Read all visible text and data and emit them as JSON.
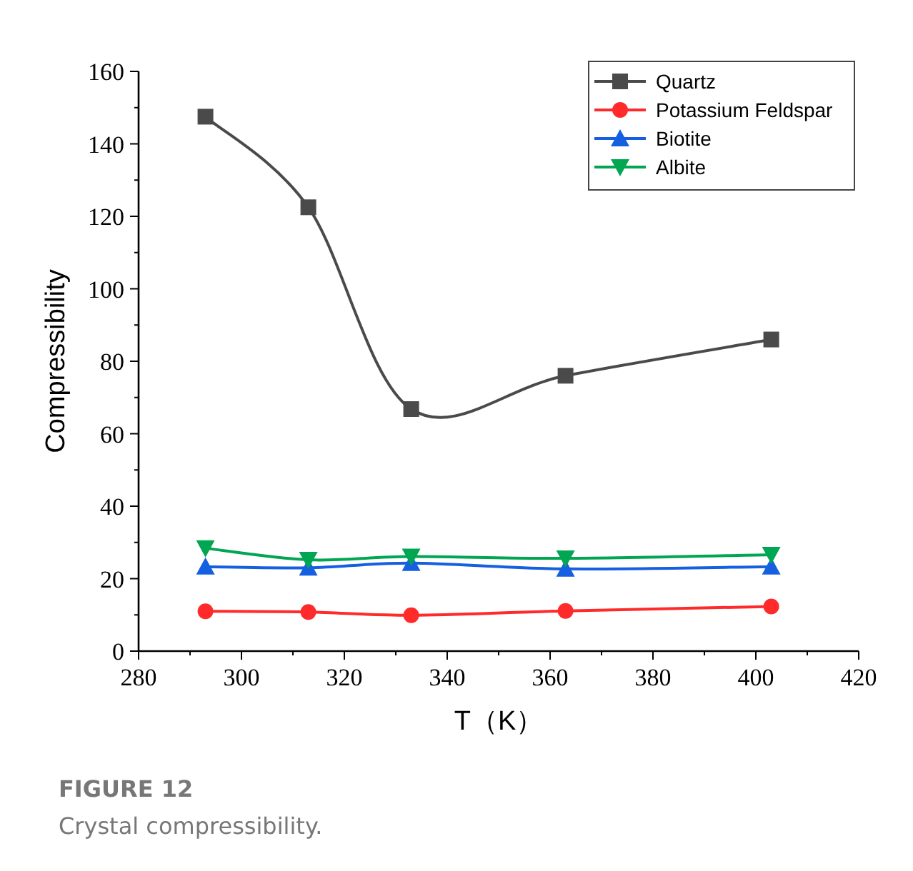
{
  "chart_data": {
    "type": "line",
    "xlabel": "T（K）",
    "ylabel": "Compressibility",
    "annotations": [
      "**FIGURE 12**",
      "Crystal compressibility."
    ],
    "x": [
      293,
      313,
      333,
      363,
      403
    ],
    "series": [
      {
        "name": "Quartz",
        "color": "#4a4a4a",
        "marker": "square",
        "values": [
          147.5,
          122.5,
          66.8,
          76,
          86
        ]
      },
      {
        "name": "Potassium Feldspar",
        "color": "#ff2a2a",
        "marker": "circle",
        "values": [
          11,
          10.8,
          9.9,
          11.1,
          12.3
        ]
      },
      {
        "name": "Biotite",
        "color": "#1560e0",
        "marker": "triangle",
        "values": [
          23.3,
          23,
          24.3,
          22.7,
          23.3
        ]
      },
      {
        "name": "Albite",
        "color": "#00a651",
        "marker": "triangle-down",
        "values": [
          28.4,
          25.2,
          26.1,
          25.6,
          26.6
        ]
      }
    ],
    "xlim": [
      280,
      420
    ],
    "xticks": [
      280,
      {
        "value": 290,
        "label": null
      },
      300,
      {
        "value": 310,
        "label": null
      },
      320,
      {
        "value": 330,
        "label": null
      },
      340,
      {
        "value": 350,
        "label": null
      },
      360,
      {
        "value": 370,
        "label": null
      },
      380,
      {
        "value": 390,
        "label": null
      },
      400,
      {
        "value": 410,
        "label": null
      },
      420
    ],
    "ylim": [
      0,
      160
    ],
    "yticks": [
      0,
      {
        "value": 10,
        "label": null
      },
      20,
      {
        "value": 30,
        "label": null
      },
      40,
      {
        "value": 50,
        "label": null
      },
      60,
      {
        "value": 70,
        "label": null
      },
      80,
      {
        "value": 90,
        "label": null
      },
      100,
      {
        "value": 110,
        "label": null
      },
      120,
      {
        "value": 130,
        "label": null
      },
      140,
      {
        "value": 150,
        "label": null
      },
      160
    ],
    "grid": false,
    "legend": "top right",
    "line_style": "solid"
  }
}
